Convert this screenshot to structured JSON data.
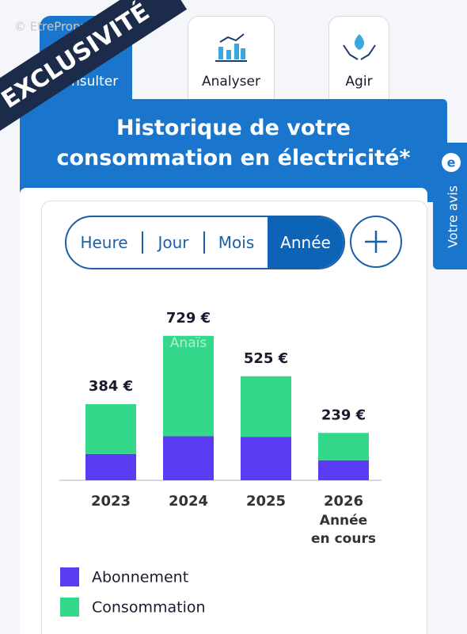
{
  "watermark": "© EtreProprio.com",
  "banner": "EXCLUSIVITÉ",
  "tabs": [
    "Consulter",
    "Analyser",
    "Agir"
  ],
  "header": {
    "title_lines": [
      "Historique de votre",
      "consommation en électricité*"
    ]
  },
  "feedback": "Votre avis",
  "periods": [
    "Heure",
    "Jour",
    "Mois",
    "Année"
  ],
  "chart_data": {
    "type": "stacked_bar",
    "categories": [
      "2023",
      "2024",
      "2025",
      "2026"
    ],
    "current_year_note": [
      "Année",
      "en cours"
    ],
    "series": [
      {
        "name": "Abonnement",
        "color": "#5b3cf2",
        "values": [
          133,
          222,
          218,
          101
        ]
      },
      {
        "name": "Consommation",
        "color": "#34d88a",
        "values": [
          251,
          507,
          307,
          138
        ]
      }
    ],
    "totals": [
      384,
      729,
      525,
      239
    ],
    "value_labels": [
      "384 €",
      "729 €",
      "525 €",
      "239 €"
    ],
    "photo_watermark": "Anaïs"
  }
}
